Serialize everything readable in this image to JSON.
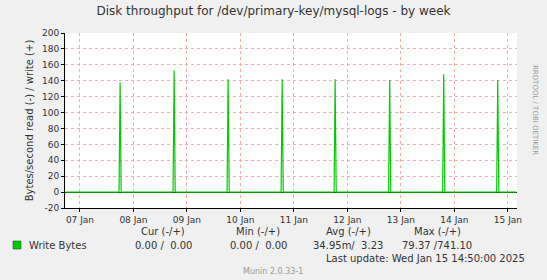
{
  "chart_data": {
    "type": "line",
    "title": "Disk throughput for /dev/primary-key/mysql-logs - by week",
    "y_label": "Bytes/second read (-) / write (+)",
    "x": [
      6.73,
      7.73,
      7.75,
      7.77,
      8.74,
      8.76,
      8.78,
      9.75,
      9.77,
      9.79,
      10.76,
      10.78,
      10.8,
      11.75,
      11.77,
      11.79,
      12.77,
      12.79,
      12.81,
      13.78,
      13.8,
      13.82,
      14.79,
      14.81,
      14.83,
      15.16
    ],
    "series": [
      {
        "name": "Write Bytes",
        "color": "#00cc00",
        "values": [
          0,
          0,
          138,
          0,
          0,
          153,
          0,
          0,
          142,
          0,
          0,
          142,
          0,
          0,
          142,
          0,
          0,
          141,
          0,
          0,
          148,
          0,
          0,
          141,
          0,
          0
        ]
      }
    ],
    "xlim": [
      6.72,
      15.17
    ],
    "xticks": [
      {
        "value": 7,
        "label": "07 Jan"
      },
      {
        "value": 8,
        "label": "08 Jan"
      },
      {
        "value": 9,
        "label": "09 Jan"
      },
      {
        "value": 10,
        "label": "10 Jan"
      },
      {
        "value": 11,
        "label": "11 Jan"
      },
      {
        "value": 12,
        "label": "12 Jan"
      },
      {
        "value": 13,
        "label": "13 Jan"
      },
      {
        "value": 14,
        "label": "14 Jan"
      },
      {
        "value": 15,
        "label": "15 Jan"
      }
    ],
    "ylim": [
      -20,
      200
    ],
    "yticks": [
      -20,
      0,
      20,
      40,
      60,
      80,
      100,
      120,
      140,
      160,
      180,
      200
    ],
    "grid": true,
    "summary": {
      "columns": [
        "Cur (-/+)",
        "Min (-/+)",
        "Avg (-/+)",
        "Max (-/+)"
      ],
      "cells": [
        "0.00 /  0.00",
        "0.00 /  0.00",
        "34.95m/  3.23",
        "79.37 /741.10"
      ]
    },
    "last_update": "Last update: Wed Jan 15 14:50:00 2025",
    "footer": "Munin 2.0.33-1",
    "watermark": "RRDTOOL / TOBI OETIKER"
  }
}
